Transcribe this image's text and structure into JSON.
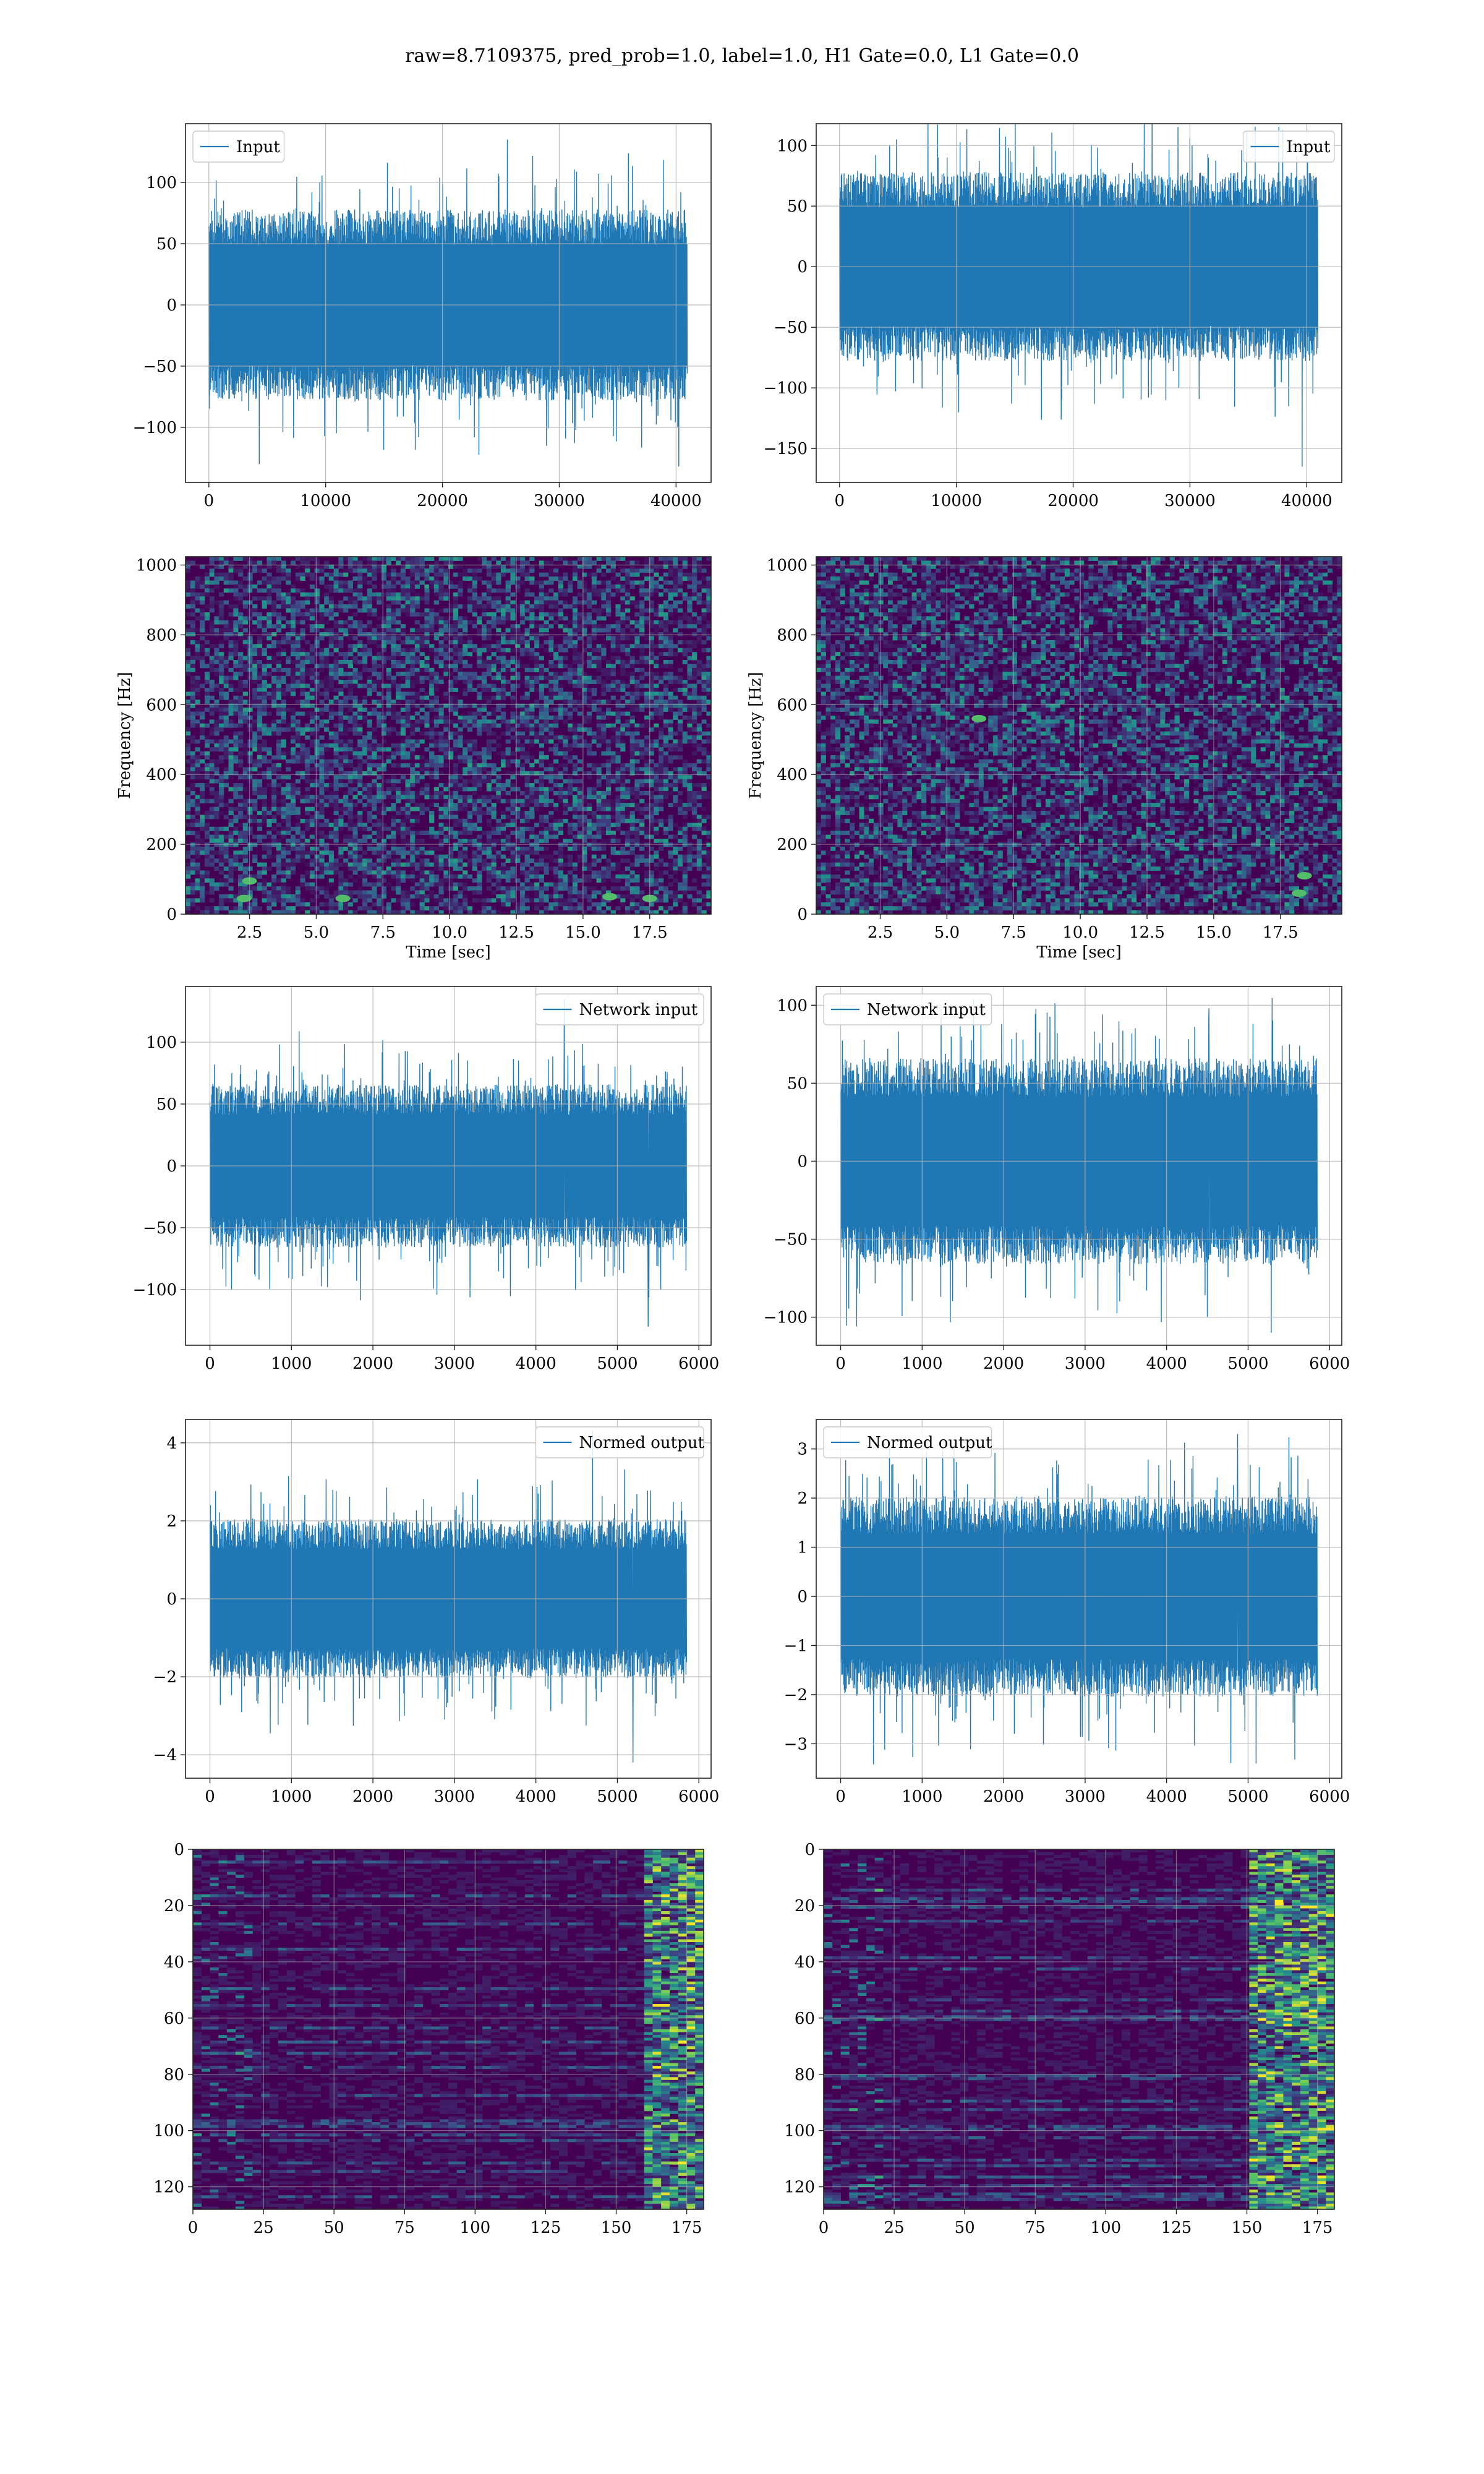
{
  "figure": {
    "title": "raw=8.7109375, pred_prob=1.0, label=1.0, H1 Gate=0.0, L1 Gate=0.0"
  },
  "colors": {
    "line": "#1f77b4",
    "grid": "#b0b0b0",
    "heat_low": "#440154",
    "heat_mid": "#31688e",
    "heat_high": "#fde725"
  },
  "chart_data": [
    {
      "id": "input-h1",
      "type": "line",
      "title": "",
      "xlabel": "",
      "ylabel": "",
      "legend": "top-left",
      "grid": true,
      "series": [
        {
          "name": "Input",
          "n": 40960,
          "amplitude_typical": 65,
          "min": -132,
          "max": 135
        }
      ],
      "xlim": [
        -2000,
        43000
      ],
      "ylim": [
        -145,
        148
      ],
      "xticks": [
        0,
        10000,
        20000,
        30000,
        40000
      ],
      "yticks": [
        -100,
        -50,
        0,
        50,
        100
      ]
    },
    {
      "id": "input-l1",
      "type": "line",
      "title": "",
      "xlabel": "",
      "ylabel": "",
      "legend": "top-right",
      "grid": true,
      "series": [
        {
          "name": "Input",
          "n": 40960,
          "amplitude_typical": 65,
          "min": -165,
          "max": 132
        }
      ],
      "xlim": [
        -2000,
        43000
      ],
      "ylim": [
        -178,
        118
      ],
      "xticks": [
        0,
        10000,
        20000,
        30000,
        40000
      ],
      "yticks": [
        -150,
        -100,
        -50,
        0,
        50,
        100
      ]
    },
    {
      "id": "spec-h1",
      "type": "heatmap",
      "title": "",
      "xlabel": "Time [sec]",
      "ylabel": "Frequency [Hz]",
      "grid": true,
      "xlim": [
        0.1,
        19.8
      ],
      "ylim": [
        0,
        1024
      ],
      "xticks": [
        2.5,
        5.0,
        7.5,
        10.0,
        12.5,
        15.0,
        17.5
      ],
      "yticks": [
        0,
        200,
        400,
        600,
        800,
        1000
      ],
      "hot_spots": [
        [
          2.5,
          95
        ],
        [
          2.3,
          45
        ],
        [
          6.0,
          45
        ],
        [
          16.0,
          50
        ],
        [
          17.5,
          45
        ]
      ]
    },
    {
      "id": "spec-l1",
      "type": "heatmap",
      "title": "",
      "xlabel": "Time [sec]",
      "ylabel": "Frequency [Hz]",
      "grid": true,
      "xlim": [
        0.1,
        19.8
      ],
      "ylim": [
        0,
        1024
      ],
      "xticks": [
        2.5,
        5.0,
        7.5,
        10.0,
        12.5,
        15.0,
        17.5
      ],
      "yticks": [
        0,
        200,
        400,
        600,
        800,
        1000
      ],
      "hot_spots": [
        [
          18.2,
          60
        ],
        [
          18.4,
          110
        ],
        [
          6.2,
          560
        ]
      ]
    },
    {
      "id": "network-h1",
      "type": "line",
      "title": "",
      "xlabel": "",
      "ylabel": "",
      "legend": "top-right",
      "grid": true,
      "series": [
        {
          "name": "Network input",
          "n": 5850,
          "amplitude_typical": 55,
          "min": -130,
          "max": 135
        }
      ],
      "xlim": [
        -300,
        6150
      ],
      "ylim": [
        -145,
        145
      ],
      "xticks": [
        0,
        1000,
        2000,
        3000,
        4000,
        5000,
        6000
      ],
      "yticks": [
        -100,
        -50,
        0,
        50,
        100
      ]
    },
    {
      "id": "network-l1",
      "type": "line",
      "title": "",
      "xlabel": "",
      "ylabel": "",
      "legend": "top-left",
      "grid": true,
      "series": [
        {
          "name": "Network input",
          "n": 5850,
          "amplitude_typical": 55,
          "min": -110,
          "max": 98
        }
      ],
      "xlim": [
        -300,
        6150
      ],
      "ylim": [
        -118,
        112
      ],
      "xticks": [
        0,
        1000,
        2000,
        3000,
        4000,
        5000,
        6000
      ],
      "yticks": [
        -100,
        -50,
        0,
        50,
        100
      ]
    },
    {
      "id": "normed-h1",
      "type": "line",
      "title": "",
      "xlabel": "",
      "ylabel": "",
      "legend": "top-right",
      "grid": true,
      "series": [
        {
          "name": "Normed output",
          "n": 5850,
          "amplitude_typical": 1.7,
          "min": -4.2,
          "max": 4.3
        }
      ],
      "xlim": [
        -300,
        6150
      ],
      "ylim": [
        -4.6,
        4.6
      ],
      "xticks": [
        0,
        1000,
        2000,
        3000,
        4000,
        5000,
        6000
      ],
      "yticks": [
        -4,
        -2,
        0,
        2,
        4
      ]
    },
    {
      "id": "normed-l1",
      "type": "line",
      "title": "",
      "xlabel": "",
      "ylabel": "",
      "legend": "top-left",
      "grid": true,
      "series": [
        {
          "name": "Normed output",
          "n": 5850,
          "amplitude_typical": 1.7,
          "min": -3.4,
          "max": 3.3
        }
      ],
      "xlim": [
        -300,
        6150
      ],
      "ylim": [
        -3.7,
        3.6
      ],
      "xticks": [
        0,
        1000,
        2000,
        3000,
        4000,
        5000,
        6000
      ],
      "yticks": [
        -3,
        -2,
        -1,
        0,
        1,
        2,
        3
      ]
    },
    {
      "id": "feature-h1",
      "type": "heatmap",
      "title": "",
      "xlabel": "",
      "ylabel": "",
      "grid": true,
      "y_inverted": true,
      "xlim": [
        0,
        181
      ],
      "ylim": [
        128,
        0
      ],
      "xticks": [
        0,
        25,
        50,
        75,
        100,
        125,
        150,
        175
      ],
      "yticks": [
        0,
        20,
        40,
        60,
        80,
        100,
        120
      ],
      "hot_columns": [
        160,
        181
      ]
    },
    {
      "id": "feature-l1",
      "type": "heatmap",
      "title": "",
      "xlabel": "",
      "ylabel": "",
      "grid": true,
      "y_inverted": true,
      "xlim": [
        0,
        181
      ],
      "ylim": [
        128,
        0
      ],
      "xticks": [
        0,
        25,
        50,
        75,
        100,
        125,
        150,
        175
      ],
      "yticks": [
        0,
        20,
        40,
        60,
        80,
        100,
        120
      ],
      "hot_columns": [
        150,
        181
      ]
    }
  ]
}
